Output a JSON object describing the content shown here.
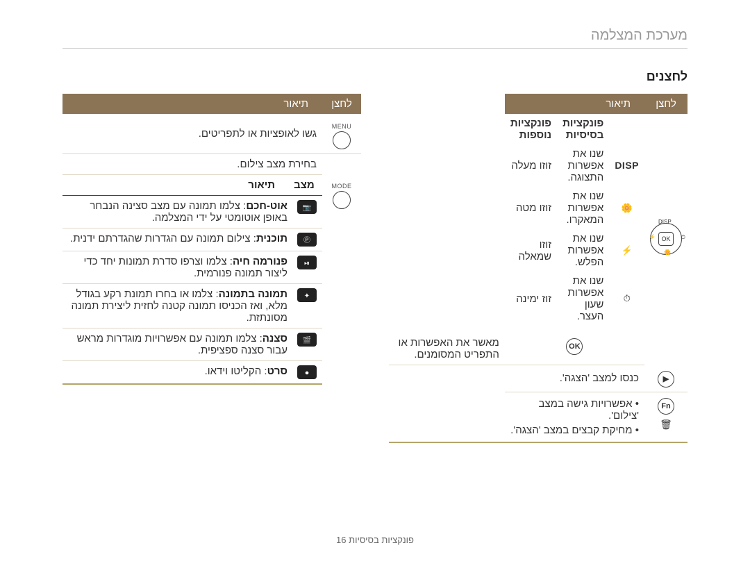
{
  "page_title": "מערכת המצלמה",
  "section_title": "לחצנים",
  "colors": {
    "header_bg": "#8b7355",
    "header_fg": "#ffffff",
    "row_border": "#e0d8c8",
    "sub_border": "#444444",
    "title_color": "#999999",
    "text_color": "#333333"
  },
  "headers": {
    "button": "לחצן",
    "description": "תיאור",
    "mode": "מצב",
    "basic_functions": "פונקציות בסיסיות",
    "extra_functions": "פונקציות נוספות"
  },
  "right_table": {
    "row1_desc": "גשו לאופציות או לתפריטים.",
    "row1_btn_label": "MENU",
    "row2_desc": "בחירת מצב צילום.",
    "row2_btn_label": "MODE",
    "modes": [
      {
        "icon": "📷",
        "bold": "אוט-חכם",
        "text": ": צלמו תמונה עם מצב סצינה הנבחר באופן אוטומטי על ידי המצלמה."
      },
      {
        "icon": "Ⓟ",
        "bold": "תוכנית",
        "text": ": צילום תמונה עם הגדרות שהגדרתם ידנית."
      },
      {
        "icon": "⏯",
        "bold": "פנורמה חיה",
        "text": ": צלמו וצרפו סדרת תמונות יחד כדי ליצור תמונה פנורמית."
      },
      {
        "icon": "✦",
        "bold": "תמונה בתמונה",
        "text": ": צלמו או בחרו תמונת רקע בגודל מלא, ואז הכניסו תמונה קטנה לחזית ליצירת תמונה מסונתזת."
      },
      {
        "icon": "🎬",
        "bold": "סצנה",
        "text": ": צלמו תמונה עם אפשרויות מוגדרות מראש עבור סצנה ספציפית."
      },
      {
        "icon": "⏺",
        "bold": "סרט",
        "text": ": הקליטו וידאו."
      }
    ]
  },
  "left_table": {
    "basic_rows": [
      {
        "icon_text": "DISP",
        "basic": "שנו את אפשרות התצוגה.",
        "extra": "זוזו מעלה"
      },
      {
        "icon_text": "🌼",
        "basic": "שנו את אפשרות המאקרו.",
        "extra": "זוזו מטה"
      },
      {
        "icon_text": "⚡",
        "basic": "שנו את אפשרות הפלש.",
        "extra": "זוזו שמאלה"
      },
      {
        "icon_text": "⏱",
        "basic": "שנו את אפשרות שעון העצר.",
        "extra": "זוז ימינה"
      }
    ],
    "rows": [
      {
        "icon": "OK",
        "text": "מאשר את האפשרות או התפריט המסומנים."
      },
      {
        "icon": "▶",
        "text": "כנסו למצב 'הצגה'."
      },
      {
        "icon": "Fn",
        "bullets": [
          "אפשרויות גישה במצב 'צילום'.",
          "מחיקת קבצים במצב 'הצגה'."
        ],
        "trash": "🗑"
      }
    ]
  },
  "footer": "פונקציות בסיסיות  16"
}
